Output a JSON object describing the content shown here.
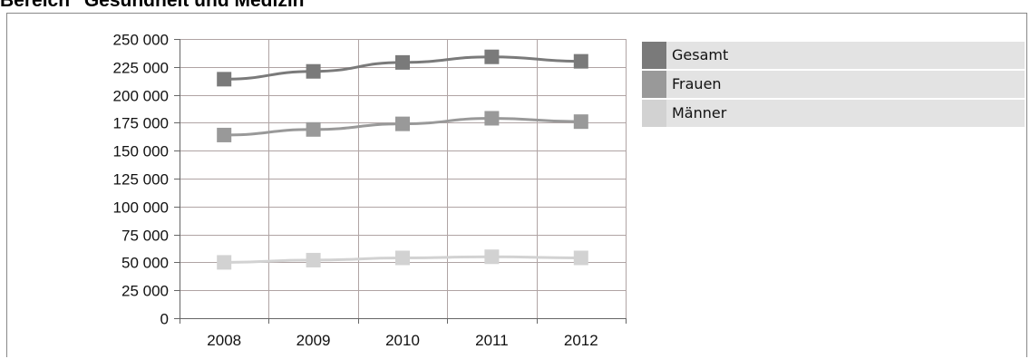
{
  "heading": "Bereich \"Gesundheit und Medizin\"",
  "colors": {
    "Gesamt": "#7a7a7a",
    "Frauen": "#999999",
    "Männer": "#d2d2d2",
    "grid": "#b0a4a4",
    "axis": "#666666"
  },
  "chart_data": {
    "type": "line",
    "categories": [
      "2008",
      "2009",
      "2010",
      "2011",
      "2012"
    ],
    "ylim": [
      0,
      250000
    ],
    "yticks": [
      0,
      25000,
      50000,
      75000,
      100000,
      125000,
      150000,
      175000,
      200000,
      225000,
      250000
    ],
    "ytick_labels": [
      "0",
      "25 000",
      "50 000",
      "75 000",
      "100 000",
      "125 000",
      "150 000",
      "175 000",
      "200 000",
      "225 000",
      "250 000"
    ],
    "grid": true,
    "legend_position": "right",
    "series": [
      {
        "name": "Gesamt",
        "values": [
          214000,
          221000,
          229000,
          234000,
          230000
        ]
      },
      {
        "name": "Frauen",
        "values": [
          164000,
          169000,
          174000,
          179000,
          176000
        ]
      },
      {
        "name": "Männer",
        "values": [
          50000,
          52000,
          54000,
          55000,
          54000
        ]
      }
    ]
  }
}
